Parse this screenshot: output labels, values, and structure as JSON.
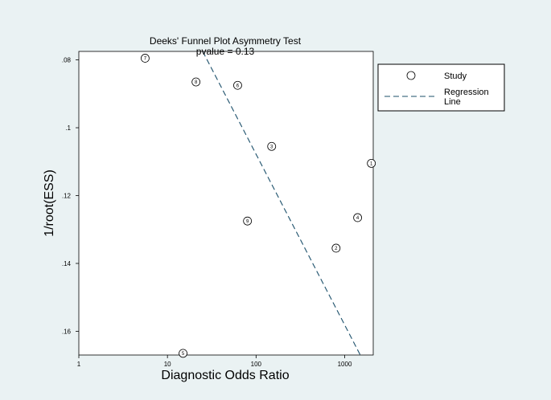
{
  "chart_data": {
    "type": "scatter",
    "title": "Deeks' Funnel Plot Asymmetry Test",
    "subtitle": "pvalue  =   0.13",
    "xlabel": "Diagnostic Odds Ratio",
    "ylabel": "1/root(ESS)",
    "x_scale": "log",
    "xlim": [
      1,
      2100
    ],
    "ylim": [
      0.167,
      0.0775
    ],
    "x_ticks": [
      {
        "value": 1,
        "label": "1"
      },
      {
        "value": 10,
        "label": "10"
      },
      {
        "value": 100,
        "label": "100"
      },
      {
        "value": 1000,
        "label": "1000"
      }
    ],
    "y_ticks": [
      {
        "value": 0.08,
        "label": ".08"
      },
      {
        "value": 0.1,
        "label": ".1"
      },
      {
        "value": 0.12,
        "label": ".12"
      },
      {
        "value": 0.14,
        "label": ".14"
      },
      {
        "value": 0.16,
        "label": ".16"
      }
    ],
    "grid": false,
    "legend_position": "right",
    "series": [
      {
        "name": "Study",
        "kind": "points",
        "points": [
          {
            "label": "1",
            "x": 2000,
            "y": 0.1105
          },
          {
            "label": "2",
            "x": 800,
            "y": 0.1355
          },
          {
            "label": "3",
            "x": 150,
            "y": 0.1055
          },
          {
            "label": "4",
            "x": 1400,
            "y": 0.1265
          },
          {
            "label": "5",
            "x": 15,
            "y": 0.1665
          },
          {
            "label": "6",
            "x": 62,
            "y": 0.0875
          },
          {
            "label": "7",
            "x": 5.6,
            "y": 0.0795
          },
          {
            "label": "8",
            "x": 21,
            "y": 0.0865
          },
          {
            "label": "9",
            "x": 80,
            "y": 0.1275
          }
        ]
      },
      {
        "name": "Regression\nLine",
        "kind": "line",
        "points": [
          {
            "x": 25,
            "y": 0.0775
          },
          {
            "x": 1500,
            "y": 0.167
          }
        ]
      }
    ]
  }
}
